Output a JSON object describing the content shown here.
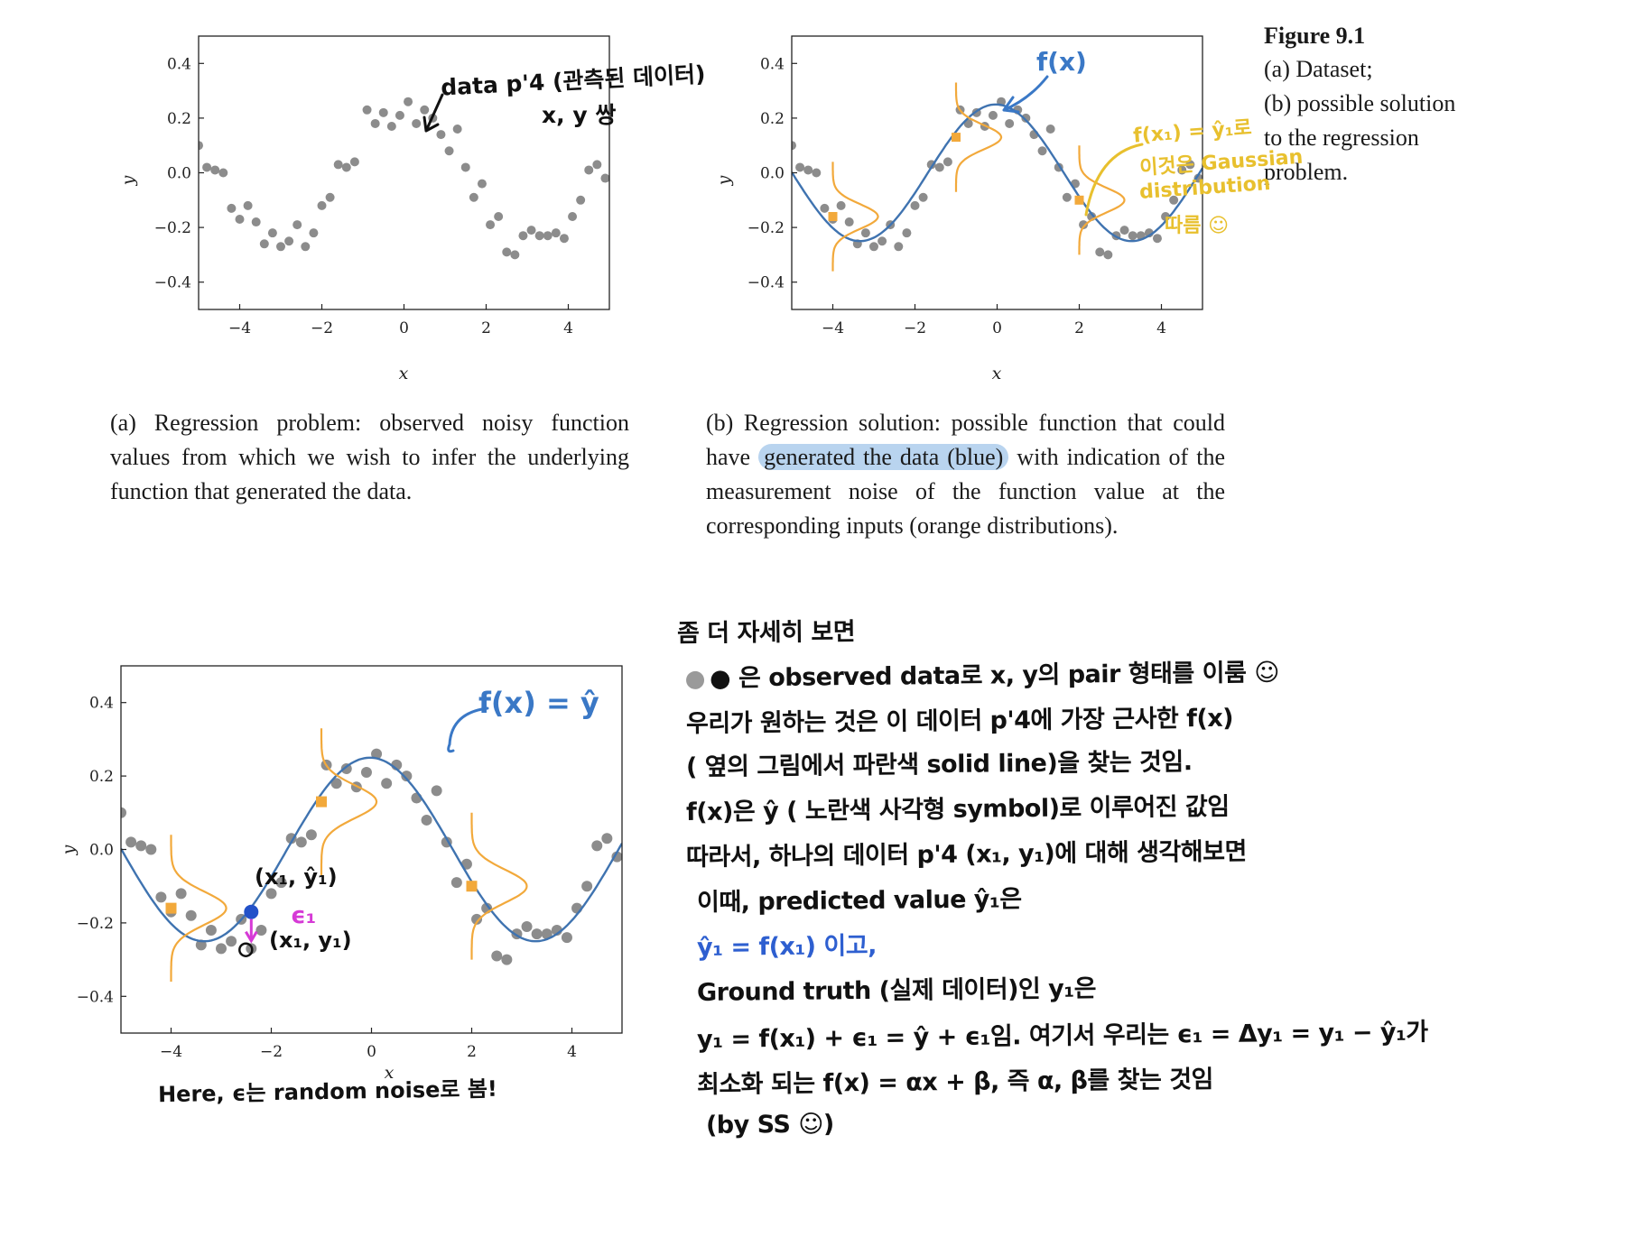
{
  "chart_data": [
    {
      "type": "scatter",
      "title": "",
      "xlabel": "x",
      "ylabel": "y",
      "xlim": [
        -5,
        5
      ],
      "ylim": [
        -0.5,
        0.5
      ],
      "xticks": [
        -4,
        -2,
        0,
        2,
        4
      ],
      "yticks": [
        -0.4,
        -0.2,
        0.0,
        0.2,
        0.4
      ],
      "xtick_labels": [
        "−4",
        "−2",
        "0",
        "2",
        "4"
      ],
      "ytick_labels": [
        "−0.4",
        "−0.2",
        "0.0",
        "0.2",
        "0.4"
      ],
      "grid": false,
      "series": [
        {
          "points": [
            [
              -5.0,
              0.1
            ],
            [
              -4.8,
              0.02
            ],
            [
              -4.6,
              0.01
            ],
            [
              -4.4,
              0.0
            ],
            [
              -4.2,
              -0.13
            ],
            [
              -4.0,
              -0.17
            ],
            [
              -3.8,
              -0.12
            ],
            [
              -3.6,
              -0.18
            ],
            [
              -3.4,
              -0.26
            ],
            [
              -3.2,
              -0.22
            ],
            [
              -3.0,
              -0.27
            ],
            [
              -2.8,
              -0.25
            ],
            [
              -2.6,
              -0.19
            ],
            [
              -2.4,
              -0.27
            ],
            [
              -2.2,
              -0.22
            ],
            [
              -2.0,
              -0.12
            ],
            [
              -1.8,
              -0.09
            ],
            [
              -1.6,
              0.03
            ],
            [
              -1.4,
              0.02
            ],
            [
              -1.2,
              0.04
            ],
            [
              -0.9,
              0.23
            ],
            [
              -0.7,
              0.18
            ],
            [
              -0.5,
              0.22
            ],
            [
              -0.3,
              0.17
            ],
            [
              -0.1,
              0.21
            ],
            [
              0.1,
              0.26
            ],
            [
              0.3,
              0.18
            ],
            [
              0.5,
              0.23
            ],
            [
              0.7,
              0.2
            ],
            [
              0.9,
              0.14
            ],
            [
              1.1,
              0.08
            ],
            [
              1.3,
              0.16
            ],
            [
              1.5,
              0.02
            ],
            [
              1.7,
              -0.09
            ],
            [
              1.9,
              -0.04
            ],
            [
              2.1,
              -0.19
            ],
            [
              2.3,
              -0.16
            ],
            [
              2.5,
              -0.29
            ],
            [
              2.7,
              -0.3
            ],
            [
              2.9,
              -0.23
            ],
            [
              3.1,
              -0.21
            ],
            [
              3.3,
              -0.23
            ],
            [
              3.5,
              -0.23
            ],
            [
              3.7,
              -0.22
            ],
            [
              3.9,
              -0.24
            ],
            [
              4.1,
              -0.16
            ],
            [
              4.3,
              -0.1
            ],
            [
              4.5,
              0.01
            ],
            [
              4.7,
              0.03
            ],
            [
              4.9,
              -0.02
            ]
          ]
        }
      ]
    },
    {
      "type": "line",
      "title": "",
      "xlabel": "x",
      "ylabel": "y",
      "xlim": [
        -5,
        5
      ],
      "ylim": [
        -0.5,
        0.5
      ],
      "xticks": [
        -4,
        -2,
        0,
        2,
        4
      ],
      "yticks": [
        -0.4,
        -0.2,
        0.0,
        0.2,
        0.4
      ],
      "xtick_labels": [
        "−4",
        "−2",
        "0",
        "2",
        "4"
      ],
      "ytick_labels": [
        "−0.4",
        "−0.2",
        "0.0",
        "0.2",
        "0.4"
      ],
      "grid": false,
      "function": "f(x) ≈ 0.25·sin(0.95x + 1.6)",
      "marked_points": [
        [
          -4.0,
          -0.16
        ],
        [
          -1.0,
          0.13
        ],
        [
          2.0,
          -0.1
        ]
      ]
    },
    {
      "type": "line",
      "title": "",
      "xlabel": "x",
      "ylabel": "y",
      "xlim": [
        -5,
        5
      ],
      "ylim": [
        -0.5,
        0.5
      ],
      "xticks": [
        -4,
        -2,
        0,
        2,
        4
      ],
      "yticks": [
        -0.4,
        -0.2,
        0.0,
        0.2,
        0.4
      ],
      "xtick_labels": [
        "−4",
        "−2",
        "0",
        "2",
        "4"
      ],
      "ytick_labels": [
        "−0.4",
        "−0.2",
        "0.0",
        "0.2",
        "0.4"
      ],
      "grid": false,
      "function": "f(x) ≈ 0.25·sin(0.95x + 1.6)",
      "marked_points": [
        [
          -4.0,
          -0.16
        ],
        [
          -1.0,
          0.13
        ],
        [
          2.0,
          -0.1
        ]
      ],
      "highlighted_point": [
        -2.4,
        -0.17
      ]
    }
  ],
  "figure": {
    "title": "Figure 9.1",
    "lines": [
      "(a) Dataset;",
      "(b) possible solution",
      "to the regression",
      "problem."
    ]
  },
  "caption_a": "(a) Regression problem: observed noisy function values from which we wish to infer the underlying function that generated the data.",
  "caption_b_pre": "(b) Regression solution: possible function that could have",
  "caption_b_hl": "generated the data (blue)",
  "caption_b_post": "with indication of the measurement noise of the function value at the corresponding inputs (orange distributions).",
  "annotations": {
    "a_note_1": "data p'4 (관측된 데이터)",
    "a_note_2": "x, y 쌍",
    "b_fx": "f(x)",
    "b_note_1": "f(x₁) = ŷ₁로",
    "b_note_2": "이것은 Gaussian",
    "b_note_3": "distribution",
    "b_note_4": "따름 ☺",
    "c_fx": "f(x) = ŷ",
    "c_pred": "(x₁, ŷ₁)",
    "c_eps": "ϵ₁",
    "c_true": "(x₁, y₁)",
    "c_here": "Here, ϵ는 random noise로 봄!"
  },
  "notes": [
    "좀 더 자세히 보면",
    "● 은 observed data로 x, y의 pair 형태를 이룸 ☺",
    "우리가 원하는 것은 이 데이터 p'4에 가장 근사한 f(x)",
    "( 옆의 그림에서 파란색 solid line)을 찾는 것임.",
    "f(x)은 ŷ ( 노란색 사각형 symbol)로 이루어진 값임",
    "따라서, 하나의 데이터 p'4 (x₁, y₁)에 대해 생각해보면",
    "이때, predicted value ŷ₁은",
    "ŷ₁ = f(x₁) 이고,",
    "Ground truth (실제 데이터)인 y₁은",
    "y₁ = f(x₁) + ϵ₁ = ŷ + ϵ₁임. 여기서 우리는 ϵ₁ = Δy₁ = y₁ − ŷ₁가",
    "최소화 되는 f(x) = αx + β, 즉 α, β를 찾는 것임",
    "(by SS ☺)"
  ],
  "colors": {
    "points": "#8c8c8c",
    "function": "#3f73b0",
    "noise": "#f2a93b",
    "annotation_blue": "#3a78c6",
    "annotation_yellow": "#e8c02e",
    "annotation_magenta": "#d63ad6",
    "highlight": "#b9d4ef",
    "circle": "#eaa2b8"
  }
}
